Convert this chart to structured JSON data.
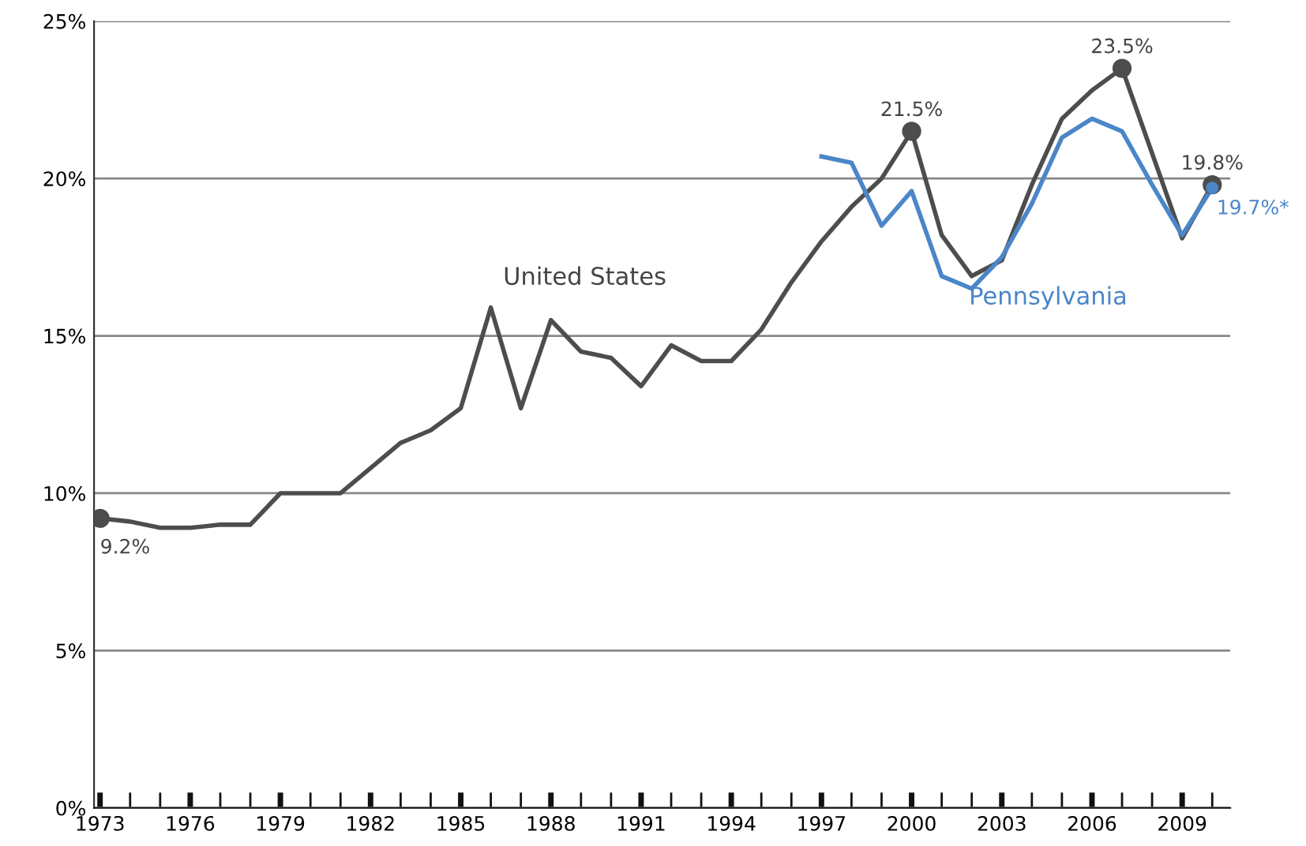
{
  "chart_data": {
    "type": "line",
    "x": [
      1973,
      1974,
      1975,
      1976,
      1977,
      1978,
      1979,
      1980,
      1981,
      1982,
      1983,
      1984,
      1985,
      1986,
      1987,
      1988,
      1989,
      1990,
      1991,
      1992,
      1993,
      1994,
      1995,
      1996,
      1997,
      1998,
      1999,
      2000,
      2001,
      2002,
      2003,
      2004,
      2005,
      2006,
      2007,
      2008,
      2009,
      2010
    ],
    "series": [
      {
        "name": "United States",
        "color": "#4d4d4d",
        "values": [
          9.2,
          9.1,
          8.9,
          8.9,
          9.0,
          9.0,
          10.0,
          10.0,
          10.0,
          10.8,
          11.6,
          12.0,
          12.7,
          15.9,
          12.7,
          15.5,
          14.5,
          14.3,
          13.4,
          14.7,
          14.2,
          14.2,
          15.2,
          16.7,
          18.0,
          19.1,
          20.0,
          21.5,
          18.2,
          16.9,
          17.4,
          19.8,
          21.9,
          22.8,
          23.5,
          20.8,
          18.1,
          19.8
        ]
      },
      {
        "name": "Pennsylvania",
        "color": "#4a86c8",
        "x": [
          1997,
          1998,
          1999,
          2000,
          2001,
          2002,
          2003,
          2004,
          2005,
          2006,
          2007,
          2008,
          2009,
          2010
        ],
        "values": [
          20.7,
          20.5,
          18.5,
          19.6,
          16.9,
          16.5,
          17.5,
          19.2,
          21.3,
          21.9,
          21.5,
          19.8,
          18.2,
          19.7
        ]
      }
    ],
    "annotations": [
      {
        "text": "9.2%",
        "x": 1973,
        "y": 9.2
      },
      {
        "text": "21.5%",
        "x": 2000,
        "y": 21.5
      },
      {
        "text": "23.5%",
        "x": 2007,
        "y": 23.5
      },
      {
        "text": "19.8%",
        "x": 2010,
        "y": 19.8
      },
      {
        "text": "19.7%*",
        "x": 2010,
        "y": 19.7
      }
    ],
    "xlim": [
      1972.8,
      2010.6
    ],
    "xticks": [
      1973,
      {
        "value": 1974,
        "label": null
      },
      {
        "value": 1975,
        "label": null
      },
      1976,
      {
        "value": 1977,
        "label": null
      },
      {
        "value": 1978,
        "label": null
      },
      1979,
      {
        "value": 1980,
        "label": null
      },
      {
        "value": 1981,
        "label": null
      },
      1982,
      {
        "value": 1983,
        "label": null
      },
      {
        "value": 1984,
        "label": null
      },
      1985,
      {
        "value": 1986,
        "label": null
      },
      {
        "value": 1987,
        "label": null
      },
      1988,
      {
        "value": 1989,
        "label": null
      },
      {
        "value": 1990,
        "label": null
      },
      1991,
      {
        "value": 1992,
        "label": null
      },
      {
        "value": 1993,
        "label": null
      },
      1994,
      {
        "value": 1995,
        "label": null
      },
      {
        "value": 1996,
        "label": null
      },
      1997,
      {
        "value": 1998,
        "label": null
      },
      {
        "value": 1999,
        "label": null
      },
      2000,
      {
        "value": 2001,
        "label": null
      },
      {
        "value": 2002,
        "label": null
      },
      2003,
      {
        "value": 2004,
        "label": null
      },
      {
        "value": 2005,
        "label": null
      },
      2006,
      {
        "value": 2007,
        "label": null
      },
      {
        "value": 2008,
        "label": null
      },
      2009,
      {
        "value": 2010,
        "label": null
      }
    ],
    "ylim": [
      0,
      25
    ],
    "yticks": [
      {
        "value": 0,
        "label": "0%"
      },
      {
        "value": 5,
        "label": "5%"
      },
      {
        "value": 10,
        "label": "10%"
      },
      {
        "value": 15,
        "label": "15%"
      },
      {
        "value": 20,
        "label": "20%"
      },
      {
        "value": 25,
        "label": "25%"
      }
    ],
    "grid": "y",
    "legend": false,
    "marker": "none",
    "line_style": "solid"
  }
}
